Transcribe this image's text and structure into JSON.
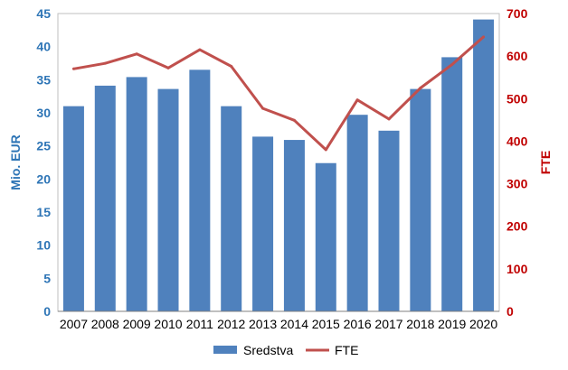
{
  "chart_data": {
    "type": "bar",
    "categories": [
      "2007",
      "2008",
      "2009",
      "2010",
      "2011",
      "2012",
      "2013",
      "2014",
      "2015",
      "2016",
      "2017",
      "2018",
      "2019",
      "2020"
    ],
    "series": [
      {
        "name": "Sredstva",
        "type": "bar",
        "axis": "left",
        "color": "#4f81bd",
        "values": [
          31.0,
          34.1,
          35.4,
          33.6,
          36.5,
          31.0,
          26.4,
          25.9,
          22.4,
          29.7,
          27.3,
          33.6,
          38.4,
          44.1
        ]
      },
      {
        "name": "FTE",
        "type": "line",
        "axis": "right",
        "color": "#c0504d",
        "values": [
          570,
          583,
          605,
          572,
          615,
          576,
          477,
          449,
          380,
          497,
          452,
          525,
          580,
          645
        ]
      }
    ],
    "ylabel_left": "Mio. EUR",
    "ylabel_right": "FTE",
    "ylim_left": [
      0,
      45
    ],
    "ylim_right": [
      0,
      700
    ],
    "yticks_left": [
      "0",
      "5",
      "10",
      "15",
      "20",
      "25",
      "30",
      "35",
      "40",
      "45"
    ],
    "yticks_right": [
      "0",
      "100",
      "200",
      "300",
      "400",
      "500",
      "600",
      "700"
    ],
    "left_axis_color": "#2e75b6",
    "right_axis_color": "#c00000",
    "grid": false,
    "legend_position": "bottom"
  }
}
